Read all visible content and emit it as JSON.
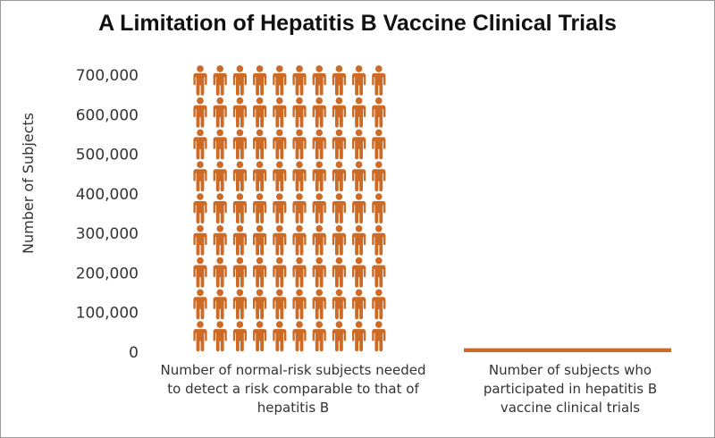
{
  "chart_data": {
    "type": "bar",
    "title": "A Limitation of Hepatitis B Vaccine Clinical Trials",
    "ylabel": "Number of Subjects",
    "xlabel": "",
    "ylim": [
      0,
      700000
    ],
    "yticks": [
      "0",
      "100,000",
      "200,000",
      "300,000",
      "400,000",
      "500,000",
      "600,000",
      "700,000"
    ],
    "categories": [
      "Number of normal-risk subjects needed to detect a risk comparable to that of hepatitis B",
      "Number of subjects who participated in hepatitis B vaccine clinical trials"
    ],
    "values": [
      700000,
      10000
    ],
    "grid": false,
    "color": "#cc6a26",
    "mark_style": [
      "pictogram-person-icons",
      "bar"
    ]
  }
}
